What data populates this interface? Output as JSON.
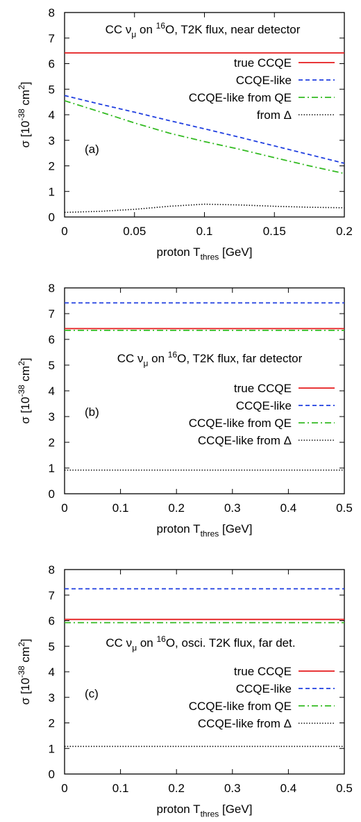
{
  "chart_data": [
    {
      "type": "line",
      "panel_label": "(a)",
      "title_parts": [
        "CC ν",
        "μ",
        " on ",
        "16",
        "O, T2K flux, near detector"
      ],
      "xlabel_parts": [
        "proton T",
        "thres",
        " [GeV]"
      ],
      "ylabel_parts": [
        "σ [10",
        "-38",
        " cm",
        "2",
        "]"
      ],
      "xlim": [
        0,
        0.2
      ],
      "ylim": [
        0,
        8
      ],
      "xticks": [
        "0",
        "0.05",
        "0.1",
        "0.15",
        "0.2"
      ],
      "xtick_values": [
        0,
        0.05,
        0.1,
        0.15,
        0.2
      ],
      "yticks": [
        "0",
        "1",
        "2",
        "3",
        "4",
        "5",
        "6",
        "7",
        "8"
      ],
      "ytick_values": [
        0,
        1,
        2,
        3,
        4,
        5,
        6,
        7,
        8
      ],
      "series": [
        {
          "name": "true CCQE",
          "color": "#e41a1c",
          "dash": "solid",
          "x": [
            0,
            0.2
          ],
          "y": [
            6.42,
            6.42
          ]
        },
        {
          "name": "CCQE-like",
          "color": "#1f3ee0",
          "dash": "dashed",
          "x": [
            0,
            0.025,
            0.05,
            0.075,
            0.1,
            0.125,
            0.15,
            0.175,
            0.2
          ],
          "y": [
            4.75,
            4.42,
            4.1,
            3.77,
            3.45,
            3.12,
            2.78,
            2.44,
            2.1
          ]
        },
        {
          "name": "CCQE-like from QE",
          "color": "#33bb22",
          "dash": "dashdot",
          "x": [
            0,
            0.025,
            0.05,
            0.075,
            0.1,
            0.125,
            0.15,
            0.175,
            0.2
          ],
          "y": [
            4.55,
            4.12,
            3.68,
            3.28,
            2.95,
            2.65,
            2.32,
            2.0,
            1.7
          ]
        },
        {
          "name": "from Δ",
          "color": "#000000",
          "dash": "dotted",
          "x": [
            0,
            0.025,
            0.05,
            0.075,
            0.1,
            0.125,
            0.15,
            0.175,
            0.2
          ],
          "y": [
            0.18,
            0.22,
            0.3,
            0.42,
            0.5,
            0.47,
            0.42,
            0.38,
            0.36
          ]
        }
      ]
    },
    {
      "type": "line",
      "panel_label": "(b)",
      "title_parts": [
        "CC ν",
        "μ",
        " on ",
        "16",
        "O, T2K flux, far detector"
      ],
      "xlabel_parts": [
        "proton T",
        "thres",
        " [GeV]"
      ],
      "ylabel_parts": [
        "σ [10",
        "-38",
        " cm",
        "2",
        "]"
      ],
      "xlim": [
        0,
        0.5
      ],
      "ylim": [
        0,
        8
      ],
      "xticks": [
        "0",
        "0.1",
        "0.2",
        "0.3",
        "0.4",
        "0.5"
      ],
      "xtick_values": [
        0,
        0.1,
        0.2,
        0.3,
        0.4,
        0.5
      ],
      "yticks": [
        "0",
        "1",
        "2",
        "3",
        "4",
        "5",
        "6",
        "7",
        "8"
      ],
      "ytick_values": [
        0,
        1,
        2,
        3,
        4,
        5,
        6,
        7,
        8
      ],
      "series": [
        {
          "name": "true CCQE",
          "color": "#e41a1c",
          "dash": "solid",
          "x": [
            0,
            0.5
          ],
          "y": [
            6.42,
            6.42
          ]
        },
        {
          "name": "CCQE-like",
          "color": "#1f3ee0",
          "dash": "dashed",
          "x": [
            0,
            0.5
          ],
          "y": [
            7.42,
            7.42
          ]
        },
        {
          "name": "CCQE-like from QE",
          "color": "#33bb22",
          "dash": "dashdot",
          "x": [
            0,
            0.5
          ],
          "y": [
            6.35,
            6.35
          ]
        },
        {
          "name": "CCQE-like from Δ",
          "color": "#000000",
          "dash": "dotted",
          "x": [
            0,
            0.5
          ],
          "y": [
            0.92,
            0.92
          ]
        }
      ]
    },
    {
      "type": "line",
      "panel_label": "(c)",
      "title_parts": [
        "CC ν",
        "μ",
        " on ",
        "16",
        "O, osci. T2K flux, far det."
      ],
      "xlabel_parts": [
        "proton T",
        "thres",
        " [GeV]"
      ],
      "ylabel_parts": [
        "σ [10",
        "-38",
        " cm",
        "2",
        "]"
      ],
      "xlim": [
        0,
        0.5
      ],
      "ylim": [
        0,
        8
      ],
      "xticks": [
        "0",
        "0.1",
        "0.2",
        "0.3",
        "0.4",
        "0.5"
      ],
      "xtick_values": [
        0,
        0.1,
        0.2,
        0.3,
        0.4,
        0.5
      ],
      "yticks": [
        "0",
        "1",
        "2",
        "3",
        "4",
        "5",
        "6",
        "7",
        "8"
      ],
      "ytick_values": [
        0,
        1,
        2,
        3,
        4,
        5,
        6,
        7,
        8
      ],
      "series": [
        {
          "name": "true CCQE",
          "color": "#e41a1c",
          "dash": "solid",
          "x": [
            0,
            0.5
          ],
          "y": [
            6.05,
            6.05
          ]
        },
        {
          "name": "CCQE-like",
          "color": "#1f3ee0",
          "dash": "dashed",
          "x": [
            0,
            0.5
          ],
          "y": [
            7.25,
            7.25
          ]
        },
        {
          "name": "CCQE-like from QE",
          "color": "#33bb22",
          "dash": "dashdot",
          "x": [
            0,
            0.5
          ],
          "y": [
            5.92,
            5.92
          ]
        },
        {
          "name": "CCQE-like from Δ",
          "color": "#000000",
          "dash": "dotted",
          "x": [
            0,
            0.5
          ],
          "y": [
            1.08,
            1.08
          ]
        }
      ]
    }
  ]
}
